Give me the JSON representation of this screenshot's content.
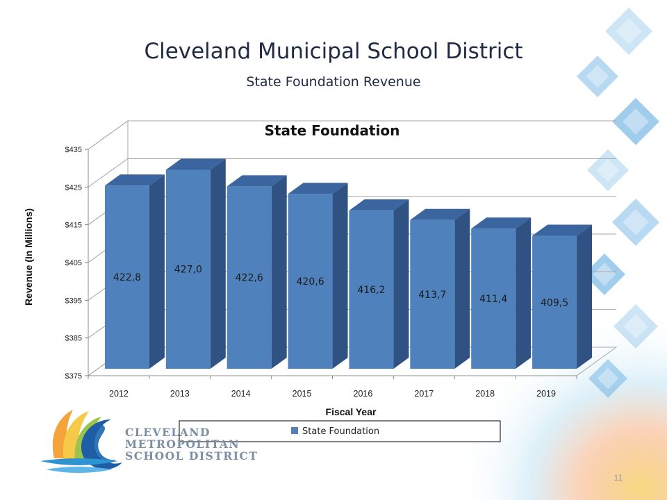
{
  "slide": {
    "title": "Cleveland Municipal School District",
    "subtitle": "State Foundation Revenue",
    "page_number": "11"
  },
  "logo": {
    "lines": [
      "CLEVELAND",
      "METROPOLITAN",
      "SCHOOL DISTRICT"
    ]
  },
  "colors": {
    "bar_front": "#4f81bd",
    "bar_side": "#2f5283",
    "bar_top": "#3a659f",
    "grid": "#a6a6a6",
    "title": "#1f2a44",
    "deco_blue": "#4aa0dc",
    "deco_yellow": "#f6c45a"
  },
  "chart_data": {
    "type": "bar",
    "title": "State Foundation",
    "xlabel": "Fiscal Year",
    "ylabel": "Revenue (In Millions)",
    "ylim": [
      375,
      435
    ],
    "yticks": [
      375,
      385,
      395,
      405,
      415,
      425,
      435
    ],
    "ytick_labels": [
      "$375",
      "$385",
      "$395",
      "$405",
      "$415",
      "$425",
      "$435"
    ],
    "categories": [
      "2012",
      "2013",
      "2014",
      "2015",
      "2016",
      "2017",
      "2018",
      "2019"
    ],
    "series": [
      {
        "name": "State Foundation",
        "values": [
          422.8,
          427.0,
          422.6,
          420.6,
          416.2,
          413.7,
          411.4,
          409.5
        ],
        "labels": [
          "422,8",
          "427,0",
          "422,6",
          "420,6",
          "416,2",
          "413,7",
          "411,4",
          "409,5"
        ]
      }
    ],
    "legend": "bottom",
    "grid": true,
    "style": "3d-clustered-column"
  }
}
